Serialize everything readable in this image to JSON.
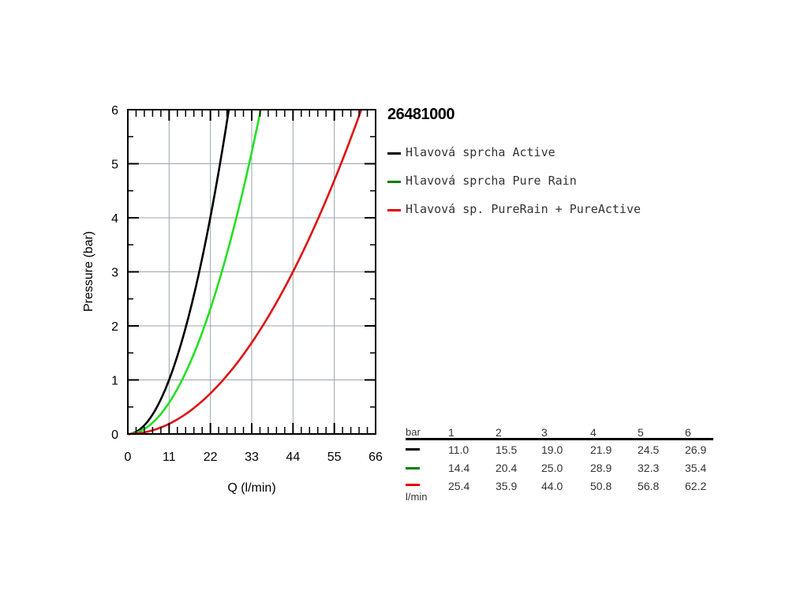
{
  "product_code": "26481000",
  "legend": [
    {
      "label": "Hlavová sprcha Active",
      "color": "#000000"
    },
    {
      "label": "Hlavová sprcha Pure Rain",
      "color": "#008000"
    },
    {
      "label": "Hlavová sp. PureRain + PureActive",
      "color": "#e00000"
    }
  ],
  "table": {
    "header_label": "bar",
    "unit_label": "l/min",
    "pressures": [
      "1",
      "2",
      "3",
      "4",
      "5",
      "6"
    ],
    "rows": [
      {
        "color": "#000000",
        "values": [
          "11.0",
          "15.5",
          "19.0",
          "21.9",
          "24.5",
          "26.9"
        ]
      },
      {
        "color": "#008000",
        "values": [
          "14.4",
          "20.4",
          "25.0",
          "28.9",
          "32.3",
          "35.4"
        ]
      },
      {
        "color": "#e00000",
        "values": [
          "25.4",
          "35.9",
          "44.0",
          "50.8",
          "56.8",
          "62.2"
        ]
      }
    ]
  },
  "chart_data": {
    "type": "line",
    "title": "",
    "xlabel": "Q (l/min)",
    "ylabel": "Pressure (bar)",
    "xlim": [
      0,
      66
    ],
    "ylim": [
      0,
      6
    ],
    "xticks": [
      0,
      11,
      22,
      33,
      44,
      55,
      66
    ],
    "yticks": [
      0,
      1,
      2,
      3,
      4,
      5,
      6
    ],
    "grid": true,
    "series": [
      {
        "name": "Hlavová sprcha Active",
        "color": "#000000",
        "x": [
          0,
          11.0,
          15.5,
          19.0,
          21.9,
          24.5,
          26.9
        ],
        "y": [
          0,
          1,
          2,
          3,
          4,
          5,
          6
        ]
      },
      {
        "name": "Hlavová sprcha Pure Rain",
        "color": "#22e022",
        "x": [
          0,
          14.4,
          20.4,
          25.0,
          28.9,
          32.3,
          35.4
        ],
        "y": [
          0,
          1,
          2,
          3,
          4,
          5,
          6
        ]
      },
      {
        "name": "Hlavová sp. PureRain + PureActive",
        "color": "#e01010",
        "x": [
          0,
          25.4,
          35.9,
          44.0,
          50.8,
          56.8,
          62.2
        ],
        "y": [
          0,
          1,
          2,
          3,
          4,
          5,
          6
        ]
      }
    ]
  }
}
